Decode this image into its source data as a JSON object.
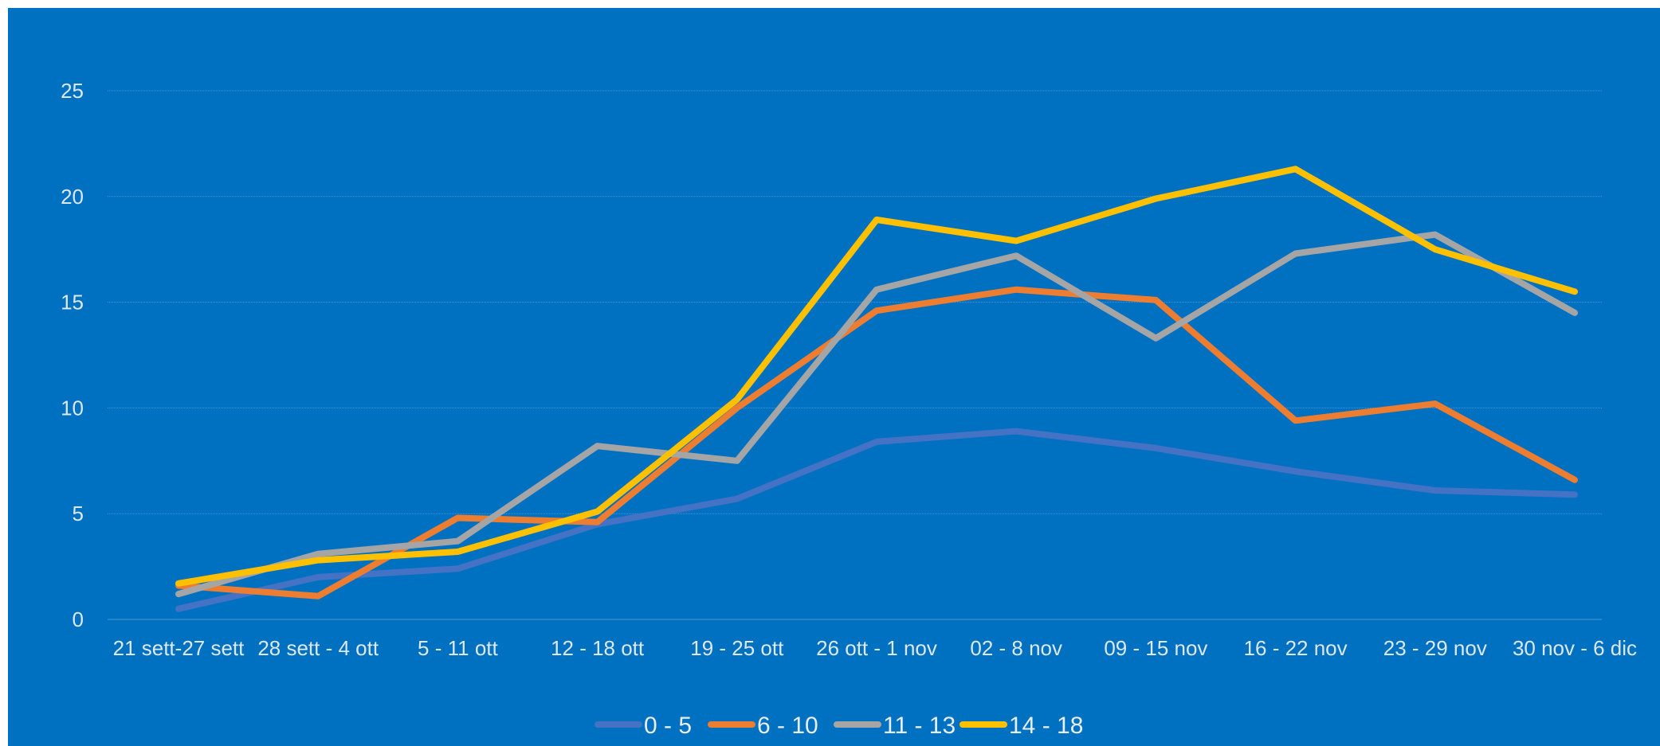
{
  "chart_data": {
    "type": "line",
    "categories": [
      "21 sett-27 sett",
      "28 sett - 4 ott",
      "5 - 11 ott",
      "12 - 18 ott",
      "19 - 25 ott",
      "26 ott - 1 nov",
      "02 - 8 nov",
      "09 - 15 nov",
      "16 - 22 nov",
      "23 - 29 nov",
      "30 nov - 6 dic"
    ],
    "ylim": [
      0,
      25
    ],
    "yticks": [
      0,
      5,
      10,
      15,
      20,
      25
    ],
    "grid": true,
    "legend_position": "bottom",
    "background": "#0070C0",
    "series": [
      {
        "name": "0 - 5",
        "color": "#4472C4",
        "values": [
          0.5,
          2.0,
          2.4,
          4.5,
          5.7,
          8.4,
          8.9,
          8.1,
          7.0,
          6.1,
          5.9
        ]
      },
      {
        "name": "6 - 10",
        "color": "#ED7D31",
        "values": [
          1.6,
          1.1,
          4.8,
          4.6,
          10.0,
          14.6,
          15.6,
          15.1,
          9.4,
          10.2,
          6.6
        ]
      },
      {
        "name": "11 - 13",
        "color": "#A5A5A5",
        "values": [
          1.2,
          3.1,
          3.7,
          8.2,
          7.5,
          15.6,
          17.2,
          13.3,
          17.3,
          18.2,
          14.5
        ]
      },
      {
        "name": "14 - 18",
        "color": "#FFC000",
        "values": [
          1.7,
          2.8,
          3.2,
          5.1,
          10.4,
          18.9,
          17.9,
          19.9,
          21.3,
          17.5,
          15.5
        ]
      }
    ]
  }
}
